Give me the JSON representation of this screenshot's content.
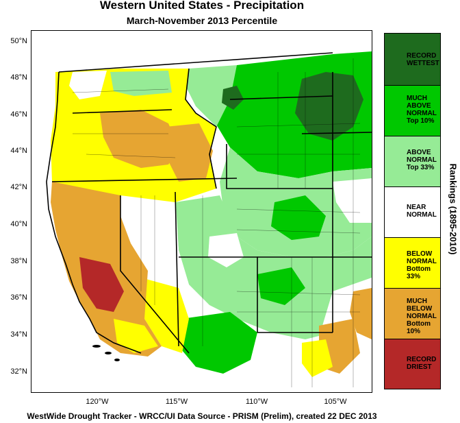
{
  "title": "Western United States - Precipitation",
  "subtitle": "March-November 2013 Percentile",
  "footer": "WestWide Drought Tracker - WRCC/UI  Data Source - PRISM (Prelim), created 22 DEC 2013",
  "rankings_label": "Rankings (1895-2010)",
  "latitude_labels": [
    "50°N",
    "48°N",
    "46°N",
    "44°N",
    "42°N",
    "40°N",
    "38°N",
    "36°N",
    "34°N",
    "32°N"
  ],
  "longitude_labels": [
    "120°W",
    "115°W",
    "110°W",
    "105°W"
  ],
  "legend": [
    {
      "label": "RECORD\nWETTEST",
      "color": "#1e6b1e"
    },
    {
      "label": "MUCH\nABOVE\nNORMAL\nTop 10%",
      "color": "#00c800"
    },
    {
      "label": "ABOVE\nNORMAL\nTop 33%",
      "color": "#96eb96"
    },
    {
      "label": "NEAR\nNORMAL",
      "color": "#ffffff"
    },
    {
      "label": "BELOW\nNORMAL\nBottom 33%",
      "color": "#ffff00"
    },
    {
      "label": "MUCH\nBELOW\nNORMAL\nBottom 10%",
      "color": "#e6a532"
    },
    {
      "label": "RECORD\nDRIEST",
      "color": "#b42828"
    }
  ]
}
